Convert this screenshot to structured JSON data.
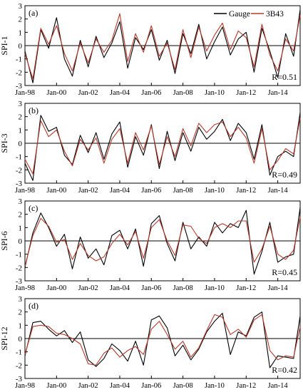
{
  "chart_data": [
    {
      "type": "line",
      "panel_label": "(a)",
      "ylabel": "SPI-1",
      "ylim": [
        -3,
        3
      ],
      "yticks": [
        -3,
        -2,
        -1,
        0,
        1,
        2,
        3
      ],
      "xlim": [
        "1998-01",
        "2015-06"
      ],
      "xticks": [
        "Jan-98",
        "Jan-00",
        "Jan-02",
        "Jan-04",
        "Jan-06",
        "Jan-08",
        "Jan-10",
        "Jan-12",
        "Jan-14"
      ],
      "annotation": "R=0.51",
      "legend": {
        "placement": "top-right",
        "entries": [
          "Gauge",
          "3B43"
        ]
      },
      "series": [
        {
          "name": "Gauge",
          "color": "#000000",
          "x": [
            "1998-01",
            "1998-07",
            "1999-01",
            "1999-07",
            "2000-01",
            "2000-07",
            "2001-01",
            "2001-07",
            "2002-01",
            "2002-07",
            "2003-01",
            "2003-07",
            "2004-01",
            "2004-07",
            "2005-01",
            "2005-07",
            "2006-01",
            "2006-07",
            "2007-01",
            "2007-07",
            "2008-01",
            "2008-07",
            "2009-01",
            "2009-07",
            "2010-01",
            "2010-07",
            "2011-01",
            "2011-07",
            "2012-01",
            "2012-07",
            "2013-01",
            "2013-07",
            "2014-01",
            "2014-07",
            "2015-01",
            "2015-06"
          ],
          "values": [
            -0.4,
            -2.8,
            1.2,
            -0.2,
            2.1,
            -1.0,
            -2.3,
            0.4,
            -1.6,
            0.7,
            -0.9,
            0.2,
            1.8,
            -1.7,
            0.6,
            -0.3,
            1.2,
            -1.1,
            0.4,
            -2.1,
            0.9,
            -0.6,
            1.6,
            -1.0,
            0.3,
            1.4,
            -0.7,
            0.5,
            1.0,
            -2.0,
            1.3,
            -0.4,
            -2.4,
            0.9,
            -0.8,
            2.7
          ]
        },
        {
          "name": "3B43",
          "color": "#b23a2e",
          "x": [
            "1998-01",
            "1998-07",
            "1999-01",
            "1999-07",
            "2000-01",
            "2000-07",
            "2001-01",
            "2001-07",
            "2002-01",
            "2002-07",
            "2003-01",
            "2003-07",
            "2004-01",
            "2004-07",
            "2005-01",
            "2005-07",
            "2006-01",
            "2006-07",
            "2007-01",
            "2007-07",
            "2008-01",
            "2008-07",
            "2009-01",
            "2009-07",
            "2010-01",
            "2010-07",
            "2011-01",
            "2011-07",
            "2012-01",
            "2012-07",
            "2013-01",
            "2013-07",
            "2014-01",
            "2014-07",
            "2015-01",
            "2015-06"
          ],
          "values": [
            -0.6,
            -2.5,
            1.3,
            0.1,
            1.5,
            -0.6,
            -1.9,
            0.2,
            -1.3,
            0.5,
            -0.5,
            0.4,
            2.4,
            -1.2,
            0.9,
            -0.5,
            1.5,
            -0.8,
            0.2,
            -1.8,
            1.2,
            -0.9,
            1.4,
            -0.4,
            0.8,
            1.7,
            -0.3,
            1.1,
            0.6,
            -1.6,
            1.6,
            -0.7,
            -1.9,
            0.5,
            -0.4,
            2.3
          ]
        }
      ]
    },
    {
      "type": "line",
      "panel_label": "(b)",
      "ylabel": "SPI-3",
      "ylim": [
        -3,
        3
      ],
      "yticks": [
        -3,
        -2,
        -1,
        0,
        1,
        2,
        3
      ],
      "xlim": [
        "1998-01",
        "2015-06"
      ],
      "xticks": [
        "Jan-98",
        "Jan-00",
        "Jan-02",
        "Jan-04",
        "Jan-06",
        "Jan-08",
        "Jan-10",
        "Jan-12",
        "Jan-14"
      ],
      "annotation": "R=0.49",
      "series": [
        {
          "name": "Gauge",
          "color": "#000000",
          "x": [
            "1998-01",
            "1998-07",
            "1999-01",
            "1999-07",
            "2000-01",
            "2000-07",
            "2001-01",
            "2001-07",
            "2002-01",
            "2002-07",
            "2003-01",
            "2003-07",
            "2004-01",
            "2004-07",
            "2005-01",
            "2005-07",
            "2006-01",
            "2006-07",
            "2007-01",
            "2007-07",
            "2008-01",
            "2008-07",
            "2009-01",
            "2009-07",
            "2010-01",
            "2010-07",
            "2011-01",
            "2011-07",
            "2012-01",
            "2012-07",
            "2013-01",
            "2013-07",
            "2014-01",
            "2014-07",
            "2015-01",
            "2015-06"
          ],
          "values": [
            -1.5,
            -2.8,
            2.1,
            0.9,
            1.2,
            -0.9,
            -1.6,
            0.6,
            -0.7,
            0.8,
            -1.2,
            0.7,
            1.6,
            -1.8,
            0.5,
            -0.9,
            1.4,
            -1.9,
            0.9,
            -1.3,
            0.8,
            -0.6,
            1.2,
            0.3,
            0.9,
            1.8,
            0.2,
            1.5,
            0.8,
            -1.2,
            1.4,
            -2.4,
            -1.0,
            -0.6,
            -1.0,
            2.3
          ]
        },
        {
          "name": "3B43",
          "color": "#b23a2e",
          "x": [
            "1998-01",
            "1998-07",
            "1999-01",
            "1999-07",
            "2000-01",
            "2000-07",
            "2001-01",
            "2001-07",
            "2002-01",
            "2002-07",
            "2003-01",
            "2003-07",
            "2004-01",
            "2004-07",
            "2005-01",
            "2005-07",
            "2006-01",
            "2006-07",
            "2007-01",
            "2007-07",
            "2008-01",
            "2008-07",
            "2009-01",
            "2009-07",
            "2010-01",
            "2010-07",
            "2011-01",
            "2011-07",
            "2012-01",
            "2012-07",
            "2013-01",
            "2013-07",
            "2014-01",
            "2014-07",
            "2015-01",
            "2015-06"
          ],
          "values": [
            -1.2,
            -2.3,
            1.7,
            0.5,
            1.0,
            -0.6,
            -1.7,
            0.3,
            -0.5,
            0.4,
            -1.5,
            0.3,
            1.1,
            -1.5,
            0.8,
            -0.5,
            1.3,
            -1.6,
            0.5,
            -1.0,
            1.1,
            -0.2,
            1.5,
            0.8,
            1.4,
            1.6,
            0.5,
            1.2,
            0.4,
            -1.5,
            1.1,
            -2.0,
            -1.3,
            -0.4,
            -0.8,
            1.9
          ]
        }
      ]
    },
    {
      "type": "line",
      "panel_label": "(c)",
      "ylabel": "SPI-6",
      "ylim": [
        -3,
        3
      ],
      "yticks": [
        -3,
        -2,
        -1,
        0,
        1,
        2,
        3
      ],
      "xlim": [
        "1998-01",
        "2015-06"
      ],
      "xticks": [
        "Jan-98",
        "Jan-00",
        "Jan-02",
        "Jan-04",
        "Jan-06",
        "Jan-08",
        "Jan-10",
        "Jan-12",
        "Jan-14"
      ],
      "annotation": "R=0.45",
      "series": [
        {
          "name": "Gauge",
          "color": "#000000",
          "x": [
            "1998-01",
            "1998-07",
            "1999-01",
            "1999-07",
            "2000-01",
            "2000-07",
            "2001-01",
            "2001-07",
            "2002-01",
            "2002-07",
            "2003-01",
            "2003-07",
            "2004-01",
            "2004-07",
            "2005-01",
            "2005-07",
            "2006-01",
            "2006-07",
            "2007-01",
            "2007-07",
            "2008-01",
            "2008-07",
            "2009-01",
            "2009-07",
            "2010-01",
            "2010-07",
            "2011-01",
            "2011-07",
            "2012-01",
            "2012-07",
            "2013-01",
            "2013-07",
            "2014-01",
            "2014-07",
            "2015-01",
            "2015-06"
          ],
          "values": [
            -2.0,
            0.6,
            2.1,
            1.0,
            -0.4,
            0.5,
            -2.1,
            0.3,
            -1.3,
            -0.6,
            -1.8,
            0.4,
            0.8,
            -0.6,
            0.9,
            -1.9,
            1.3,
            1.9,
            -0.2,
            -1.5,
            1.4,
            -0.6,
            0.3,
            -0.4,
            1.4,
            0.6,
            1.3,
            1.0,
            2.3,
            -2.5,
            -0.8,
            1.4,
            -1.6,
            -1.2,
            -1.0,
            2.5
          ]
        },
        {
          "name": "3B43",
          "color": "#b23a2e",
          "x": [
            "1998-01",
            "1998-07",
            "1999-01",
            "1999-07",
            "2000-01",
            "2000-07",
            "2001-01",
            "2001-07",
            "2002-01",
            "2002-07",
            "2003-01",
            "2003-07",
            "2004-01",
            "2004-07",
            "2005-01",
            "2005-07",
            "2006-01",
            "2006-07",
            "2007-01",
            "2007-07",
            "2008-01",
            "2008-07",
            "2009-01",
            "2009-07",
            "2010-01",
            "2010-07",
            "2011-01",
            "2011-07",
            "2012-01",
            "2012-07",
            "2013-01",
            "2013-07",
            "2014-01",
            "2014-07",
            "2015-01",
            "2015-06"
          ],
          "values": [
            -1.9,
            0.4,
            1.7,
            1.1,
            -0.1,
            0.1,
            -1.4,
            -0.2,
            -1.1,
            -1.5,
            -1.2,
            -0.2,
            0.5,
            -0.3,
            0.7,
            -1.3,
            1.0,
            1.6,
            0.0,
            -1.1,
            1.2,
            1.1,
            0.2,
            -0.2,
            1.0,
            1.3,
            1.0,
            1.5,
            1.5,
            -1.6,
            -0.6,
            1.1,
            -1.0,
            -1.4,
            -0.7,
            1.8
          ]
        }
      ]
    },
    {
      "type": "line",
      "panel_label": "(d)",
      "ylabel": "SPI-12",
      "ylim": [
        -3,
        3
      ],
      "yticks": [
        -3,
        -2,
        -1,
        0,
        1,
        2,
        3
      ],
      "xlim": [
        "1998-01",
        "2015-06"
      ],
      "xticks": [
        "Jan-98",
        "Jan-00",
        "Jan-02",
        "Jan-04",
        "Jan-06",
        "Jan-08",
        "Jan-10",
        "Jan-12",
        "Jan-14"
      ],
      "annotation": "R=0.42",
      "series": [
        {
          "name": "Gauge",
          "color": "#000000",
          "x": [
            "1998-01",
            "1998-07",
            "1999-01",
            "1999-07",
            "2000-01",
            "2000-07",
            "2001-01",
            "2001-07",
            "2002-01",
            "2002-07",
            "2003-01",
            "2003-07",
            "2004-01",
            "2004-07",
            "2005-01",
            "2005-07",
            "2006-01",
            "2006-07",
            "2007-01",
            "2007-07",
            "2008-01",
            "2008-07",
            "2009-01",
            "2009-07",
            "2010-01",
            "2010-07",
            "2011-01",
            "2011-07",
            "2012-01",
            "2012-07",
            "2013-01",
            "2013-07",
            "2014-01",
            "2014-07",
            "2015-01",
            "2015-06"
          ],
          "values": [
            -1.3,
            1.2,
            1.3,
            0.7,
            0.2,
            0.6,
            -0.3,
            0.5,
            -1.6,
            -2.1,
            -1.5,
            -0.4,
            -0.9,
            -1.7,
            -0.2,
            -2.0,
            1.4,
            1.7,
            0.8,
            -1.3,
            -0.5,
            -1.6,
            -0.8,
            0.5,
            1.3,
            1.9,
            -1.2,
            0.5,
            0.2,
            1.6,
            2.0,
            -2.2,
            -1.3,
            -1.4,
            -1.5,
            1.7
          ]
        },
        {
          "name": "3B43",
          "color": "#b23a2e",
          "x": [
            "1998-01",
            "1998-07",
            "1999-01",
            "1999-07",
            "2000-01",
            "2000-07",
            "2001-01",
            "2001-07",
            "2002-01",
            "2002-07",
            "2003-01",
            "2003-07",
            "2004-01",
            "2004-07",
            "2005-01",
            "2005-07",
            "2006-01",
            "2006-07",
            "2007-01",
            "2007-07",
            "2008-01",
            "2008-07",
            "2009-01",
            "2009-07",
            "2010-01",
            "2010-07",
            "2011-01",
            "2011-07",
            "2012-01",
            "2012-07",
            "2013-01",
            "2013-07",
            "2014-01",
            "2014-07",
            "2015-01",
            "2015-06"
          ],
          "values": [
            -1.2,
            0.9,
            1.0,
            0.9,
            0.4,
            0.3,
            0.0,
            -0.4,
            -1.9,
            -2.0,
            -1.1,
            -0.7,
            -1.4,
            -0.9,
            -0.6,
            -1.2,
            0.7,
            1.3,
            0.3,
            -0.8,
            -0.2,
            -1.4,
            -0.7,
            0.6,
            1.8,
            1.6,
            0.3,
            0.7,
            0.1,
            1.4,
            1.8,
            -0.9,
            -1.6,
            -1.3,
            -1.4,
            0.9
          ]
        }
      ]
    }
  ]
}
